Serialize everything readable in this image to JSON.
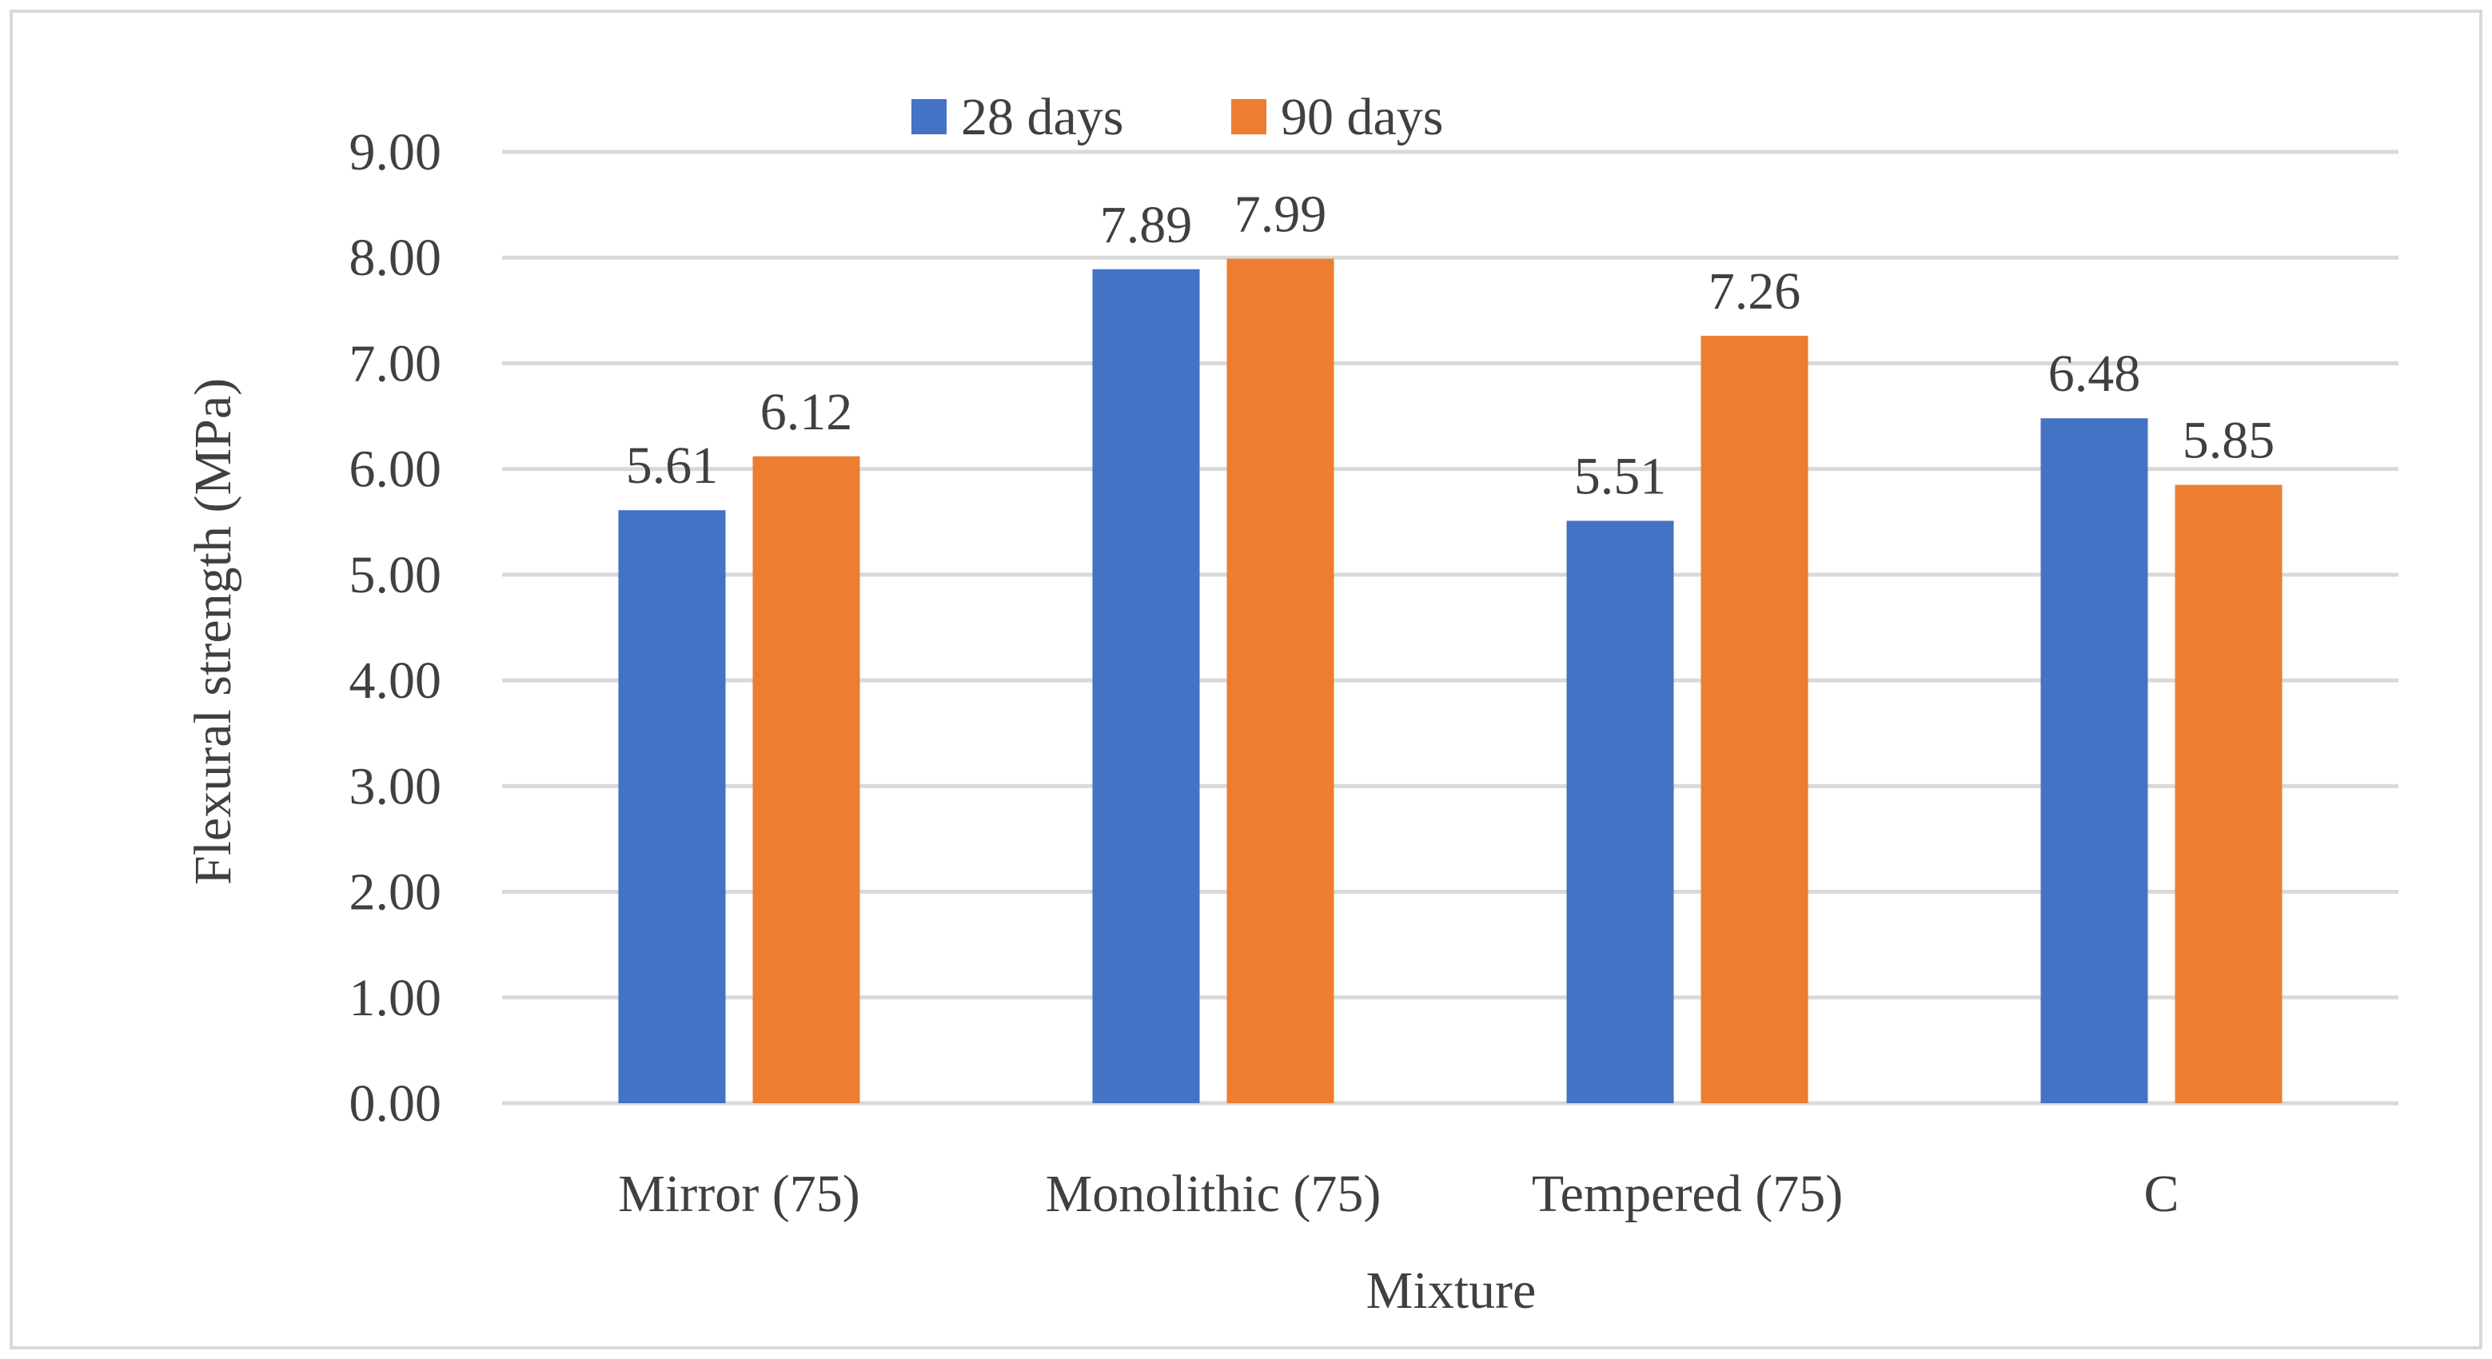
{
  "chart_data": {
    "type": "bar",
    "title": "",
    "xlabel": "Mixture",
    "ylabel": "Flexural strength (MPa)",
    "ylim": [
      0,
      9
    ],
    "yticks": [
      "0.00",
      "1.00",
      "2.00",
      "3.00",
      "4.00",
      "5.00",
      "6.00",
      "7.00",
      "8.00",
      "9.00"
    ],
    "grid": true,
    "legend_position": "top-center",
    "categories": [
      "Mirror (75)",
      "Monolithic (75)",
      "Tempered (75)",
      "C"
    ],
    "series": [
      {
        "name": "28 days",
        "color": "#4472c4",
        "values": [
          5.61,
          7.89,
          5.51,
          6.48
        ],
        "labels": [
          "5.61",
          "7.89",
          "5.51",
          "6.48"
        ]
      },
      {
        "name": "90 days",
        "color": "#ed7d31",
        "values": [
          6.12,
          7.99,
          7.26,
          5.85
        ],
        "labels": [
          "6.12",
          "7.99",
          "7.26",
          "5.85"
        ]
      }
    ]
  }
}
